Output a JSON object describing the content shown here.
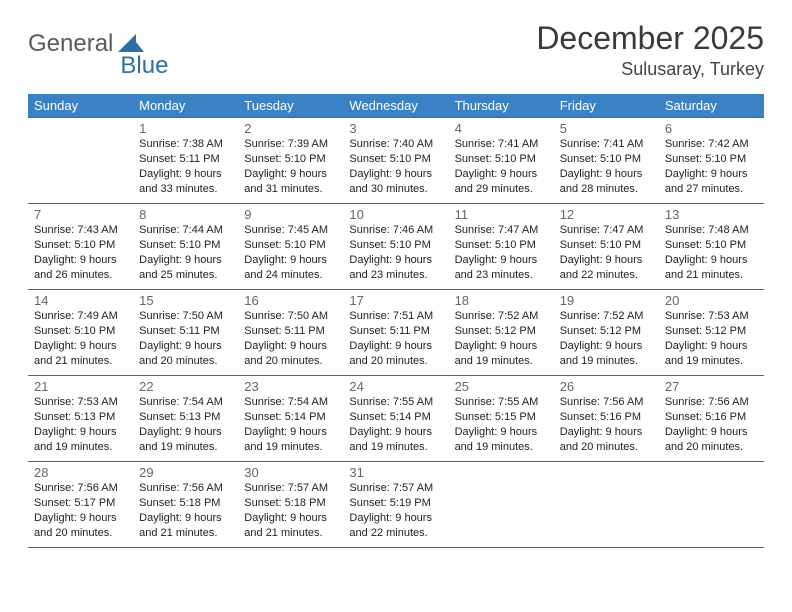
{
  "logo": {
    "part1": "General",
    "part2": "Blue"
  },
  "title": "December 2025",
  "location": "Sulusaray, Turkey",
  "colors": {
    "header_bg": "#3b82c4",
    "header_text": "#ffffff",
    "rule": "#2f6fa8",
    "logo_gray": "#5a5a5a",
    "logo_blue": "#2f6fa8",
    "text": "#222222",
    "daynum": "#666666"
  },
  "day_headers": [
    "Sunday",
    "Monday",
    "Tuesday",
    "Wednesday",
    "Thursday",
    "Friday",
    "Saturday"
  ],
  "weeks": [
    [
      null,
      {
        "n": "1",
        "sr": "7:38 AM",
        "ss": "5:11 PM",
        "dl": "9 hours and 33 minutes."
      },
      {
        "n": "2",
        "sr": "7:39 AM",
        "ss": "5:10 PM",
        "dl": "9 hours and 31 minutes."
      },
      {
        "n": "3",
        "sr": "7:40 AM",
        "ss": "5:10 PM",
        "dl": "9 hours and 30 minutes."
      },
      {
        "n": "4",
        "sr": "7:41 AM",
        "ss": "5:10 PM",
        "dl": "9 hours and 29 minutes."
      },
      {
        "n": "5",
        "sr": "7:41 AM",
        "ss": "5:10 PM",
        "dl": "9 hours and 28 minutes."
      },
      {
        "n": "6",
        "sr": "7:42 AM",
        "ss": "5:10 PM",
        "dl": "9 hours and 27 minutes."
      }
    ],
    [
      {
        "n": "7",
        "sr": "7:43 AM",
        "ss": "5:10 PM",
        "dl": "9 hours and 26 minutes."
      },
      {
        "n": "8",
        "sr": "7:44 AM",
        "ss": "5:10 PM",
        "dl": "9 hours and 25 minutes."
      },
      {
        "n": "9",
        "sr": "7:45 AM",
        "ss": "5:10 PM",
        "dl": "9 hours and 24 minutes."
      },
      {
        "n": "10",
        "sr": "7:46 AM",
        "ss": "5:10 PM",
        "dl": "9 hours and 23 minutes."
      },
      {
        "n": "11",
        "sr": "7:47 AM",
        "ss": "5:10 PM",
        "dl": "9 hours and 23 minutes."
      },
      {
        "n": "12",
        "sr": "7:47 AM",
        "ss": "5:10 PM",
        "dl": "9 hours and 22 minutes."
      },
      {
        "n": "13",
        "sr": "7:48 AM",
        "ss": "5:10 PM",
        "dl": "9 hours and 21 minutes."
      }
    ],
    [
      {
        "n": "14",
        "sr": "7:49 AM",
        "ss": "5:10 PM",
        "dl": "9 hours and 21 minutes."
      },
      {
        "n": "15",
        "sr": "7:50 AM",
        "ss": "5:11 PM",
        "dl": "9 hours and 20 minutes."
      },
      {
        "n": "16",
        "sr": "7:50 AM",
        "ss": "5:11 PM",
        "dl": "9 hours and 20 minutes."
      },
      {
        "n": "17",
        "sr": "7:51 AM",
        "ss": "5:11 PM",
        "dl": "9 hours and 20 minutes."
      },
      {
        "n": "18",
        "sr": "7:52 AM",
        "ss": "5:12 PM",
        "dl": "9 hours and 19 minutes."
      },
      {
        "n": "19",
        "sr": "7:52 AM",
        "ss": "5:12 PM",
        "dl": "9 hours and 19 minutes."
      },
      {
        "n": "20",
        "sr": "7:53 AM",
        "ss": "5:12 PM",
        "dl": "9 hours and 19 minutes."
      }
    ],
    [
      {
        "n": "21",
        "sr": "7:53 AM",
        "ss": "5:13 PM",
        "dl": "9 hours and 19 minutes."
      },
      {
        "n": "22",
        "sr": "7:54 AM",
        "ss": "5:13 PM",
        "dl": "9 hours and 19 minutes."
      },
      {
        "n": "23",
        "sr": "7:54 AM",
        "ss": "5:14 PM",
        "dl": "9 hours and 19 minutes."
      },
      {
        "n": "24",
        "sr": "7:55 AM",
        "ss": "5:14 PM",
        "dl": "9 hours and 19 minutes."
      },
      {
        "n": "25",
        "sr": "7:55 AM",
        "ss": "5:15 PM",
        "dl": "9 hours and 19 minutes."
      },
      {
        "n": "26",
        "sr": "7:56 AM",
        "ss": "5:16 PM",
        "dl": "9 hours and 20 minutes."
      },
      {
        "n": "27",
        "sr": "7:56 AM",
        "ss": "5:16 PM",
        "dl": "9 hours and 20 minutes."
      }
    ],
    [
      {
        "n": "28",
        "sr": "7:56 AM",
        "ss": "5:17 PM",
        "dl": "9 hours and 20 minutes."
      },
      {
        "n": "29",
        "sr": "7:56 AM",
        "ss": "5:18 PM",
        "dl": "9 hours and 21 minutes."
      },
      {
        "n": "30",
        "sr": "7:57 AM",
        "ss": "5:18 PM",
        "dl": "9 hours and 21 minutes."
      },
      {
        "n": "31",
        "sr": "7:57 AM",
        "ss": "5:19 PM",
        "dl": "9 hours and 22 minutes."
      },
      null,
      null,
      null
    ]
  ],
  "labels": {
    "sunrise": "Sunrise: ",
    "sunset": "Sunset: ",
    "daylight": "Daylight: "
  }
}
